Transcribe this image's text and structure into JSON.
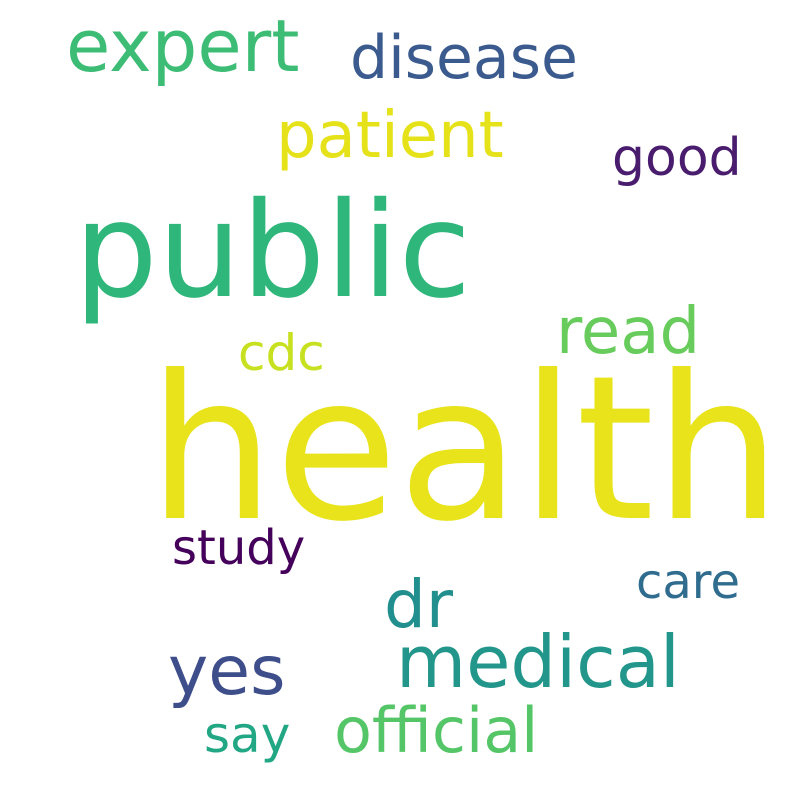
{
  "words": [
    {
      "id": "health",
      "text": "health",
      "color": "#E8E31A"
    },
    {
      "id": "public",
      "text": "public",
      "color": "#2FB67A"
    },
    {
      "id": "expert",
      "text": "expert",
      "color": "#3CBC75"
    },
    {
      "id": "disease",
      "text": "disease",
      "color": "#3B5A8E"
    },
    {
      "id": "patient",
      "text": "patient",
      "color": "#E6E21A"
    },
    {
      "id": "good",
      "text": "good",
      "color": "#4A1C6E"
    },
    {
      "id": "read",
      "text": "read",
      "color": "#67CC5C"
    },
    {
      "id": "cdc",
      "text": "cdc",
      "color": "#C7E020"
    },
    {
      "id": "study",
      "text": "study",
      "color": "#44005A"
    },
    {
      "id": "care",
      "text": "care",
      "color": "#2F6C8E"
    },
    {
      "id": "dr",
      "text": "dr",
      "color": "#218F8D"
    },
    {
      "id": "yes",
      "text": "yes",
      "color": "#3D4E8A"
    },
    {
      "id": "medical",
      "text": "medical",
      "color": "#23968B"
    },
    {
      "id": "say",
      "text": "say",
      "color": "#22A784"
    },
    {
      "id": "official",
      "text": "official",
      "color": "#55C667"
    }
  ]
}
